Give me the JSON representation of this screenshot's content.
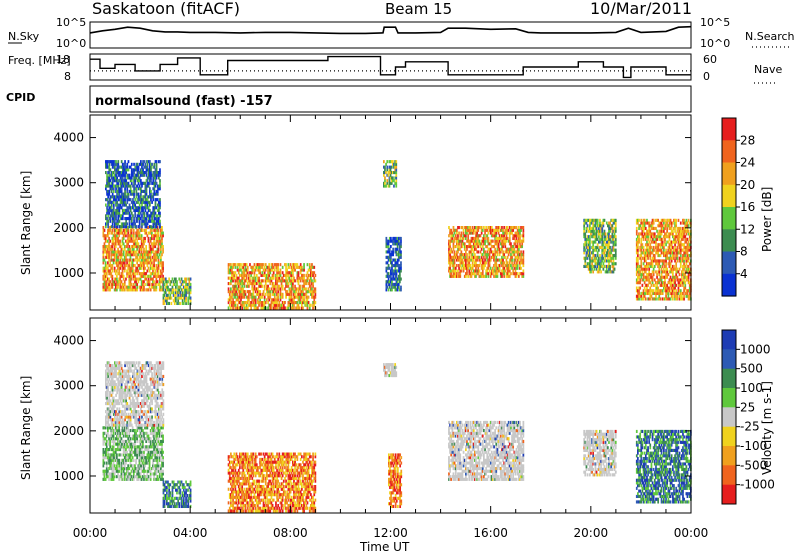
{
  "header": {
    "site": "Saskatoon (fitACF)",
    "beam": "Beam 15",
    "date": "10/Mar/2011",
    "mode": "normalsound (fast) -157"
  },
  "colors": {
    "power": [
      "#0a32d2",
      "#2d5ab4",
      "#3c8c50",
      "#5fc83c",
      "#f0d21e",
      "#f0a01e",
      "#f0641e",
      "#e61e1e"
    ],
    "velocity": [
      "#e61e1e",
      "#f0641e",
      "#f0a01e",
      "#f0d21e",
      "#c8c8c8",
      "#5fc83c",
      "#3c8c50",
      "#2d5ab4",
      "#1e3cb4"
    ]
  },
  "chart_data": [
    {
      "type": "line",
      "name": "top-panel-noise",
      "title": "",
      "xlim": [
        "00:00",
        "24:00"
      ],
      "ylabel_left": "N.Sky",
      "ylabel_right": "N.Search",
      "left_ticks": [
        "10^5",
        "10^0"
      ],
      "right_ticks": [
        "10^5",
        "10^0"
      ],
      "right_legend": "N.Search",
      "series": [
        {
          "name": "N.Sky",
          "x": [
            0,
            0.5,
            1,
            1.5,
            2,
            2.5,
            3,
            3.5,
            4,
            5,
            6,
            7,
            8,
            9,
            10,
            11,
            11.7,
            11.75,
            12.2,
            12.3,
            13,
            14,
            14.3,
            15,
            16,
            17,
            17.5,
            18,
            19,
            20,
            21,
            21.5,
            22,
            23,
            23.5,
            24
          ],
          "y": [
            2.9,
            3.3,
            3.6,
            4.0,
            3.8,
            3.3,
            3.1,
            3.1,
            3.0,
            3.0,
            2.9,
            3.0,
            3.0,
            2.9,
            2.8,
            2.8,
            2.9,
            4.0,
            4.0,
            2.9,
            2.9,
            3.0,
            3.8,
            3.8,
            3.6,
            3.7,
            3.0,
            2.9,
            2.9,
            2.9,
            3.0,
            3.8,
            3.0,
            3.2,
            4.0,
            4.1
          ]
        }
      ]
    },
    {
      "type": "line",
      "name": "frequency-panel",
      "ylabel_left": "Freq. [MHz]",
      "ylabel_right": "Nave",
      "left_ticks": [
        "18",
        "8"
      ],
      "right_ticks": [
        "60",
        "0"
      ],
      "right_legend": "Nave",
      "cpid_label": "CPID",
      "series": [
        {
          "name": "Freq",
          "x": [
            0,
            0.4,
            0.4,
            1.0,
            1.0,
            1.8,
            1.8,
            2.8,
            2.8,
            3.5,
            3.5,
            4.4,
            4.4,
            5.5,
            5.5,
            9.5,
            9.5,
            11.6,
            11.6,
            12.2,
            12.2,
            12.6,
            12.6,
            14.3,
            14.3,
            17.3,
            17.3,
            19.5,
            19.5,
            20.5,
            20.5,
            21.3,
            21.3,
            21.6,
            21.6,
            23.0,
            23.0,
            24.0
          ],
          "y": [
            16,
            16,
            12.5,
            12.5,
            14,
            14,
            11.5,
            11.5,
            14,
            14,
            16.5,
            16.5,
            10,
            10,
            15.5,
            15.5,
            17,
            17,
            10,
            10,
            13,
            13,
            15,
            15,
            10,
            10,
            13,
            13,
            15,
            15,
            13,
            13,
            9,
            9,
            13,
            13,
            10,
            10
          ]
        },
        {
          "name": "Nave",
          "x": [
            0,
            24
          ],
          "y": [
            11.5,
            11.5
          ]
        }
      ]
    },
    {
      "type": "heatmap",
      "name": "power-panel",
      "xlabel": "",
      "ylabel": "Slant Range [km]",
      "xlim": [
        "00:00",
        "24:00"
      ],
      "ylim": [
        180,
        4500
      ],
      "yticks": [
        1000,
        2000,
        3000,
        4000
      ],
      "colorbar_label": "Power [dB]",
      "colorbar_ticks": [
        4,
        8,
        12,
        16,
        20,
        24,
        28
      ],
      "regions": [
        {
          "t": [
            0.5,
            2.9
          ],
          "r": [
            600,
            2000
          ],
          "level": "high"
        },
        {
          "t": [
            0.6,
            2.8
          ],
          "r": [
            2000,
            3500
          ],
          "level": "low"
        },
        {
          "t": [
            2.9,
            4.0
          ],
          "r": [
            300,
            900
          ],
          "level": "mid"
        },
        {
          "t": [
            5.5,
            9.0
          ],
          "r": [
            200,
            1200
          ],
          "level": "high"
        },
        {
          "t": [
            11.7,
            12.2
          ],
          "r": [
            2900,
            3500
          ],
          "level": "mid"
        },
        {
          "t": [
            11.8,
            12.4
          ],
          "r": [
            600,
            1800
          ],
          "level": "low"
        },
        {
          "t": [
            14.3,
            17.3
          ],
          "r": [
            900,
            2000
          ],
          "level": "high"
        },
        {
          "t": [
            19.7,
            21.0
          ],
          "r": [
            1000,
            2200
          ],
          "level": "mid"
        },
        {
          "t": [
            21.8,
            24.0
          ],
          "r": [
            400,
            2200
          ],
          "level": "high"
        }
      ]
    },
    {
      "type": "heatmap",
      "name": "velocity-panel",
      "xlabel": "Time UT",
      "ylabel": "Slant Range [km]",
      "xlim": [
        "00:00",
        "24:00"
      ],
      "ylim": [
        180,
        4500
      ],
      "yticks": [
        1000,
        2000,
        3000,
        4000
      ],
      "xticks": [
        "00:00",
        "04:00",
        "08:00",
        "12:00",
        "16:00",
        "20:00",
        "00:00"
      ],
      "colorbar_label": "Velocity [m s-1]",
      "colorbar_ticks": [
        1000,
        500,
        100,
        25,
        -25,
        -100,
        -500,
        -1000
      ],
      "regions": [
        {
          "t": [
            0.5,
            2.9
          ],
          "r": [
            900,
            2100
          ],
          "level": "low"
        },
        {
          "t": [
            0.6,
            2.9
          ],
          "r": [
            2100,
            3500
          ],
          "level": "grey"
        },
        {
          "t": [
            2.9,
            4.0
          ],
          "r": [
            300,
            900
          ],
          "level": "pos"
        },
        {
          "t": [
            5.5,
            9.0
          ],
          "r": [
            200,
            1500
          ],
          "level": "neg"
        },
        {
          "t": [
            11.7,
            12.2
          ],
          "r": [
            3200,
            3500
          ],
          "level": "grey"
        },
        {
          "t": [
            11.9,
            12.4
          ],
          "r": [
            300,
            1500
          ],
          "level": "neg"
        },
        {
          "t": [
            14.3,
            17.3
          ],
          "r": [
            900,
            2200
          ],
          "level": "grey"
        },
        {
          "t": [
            19.7,
            21.0
          ],
          "r": [
            1000,
            2000
          ],
          "level": "grey"
        },
        {
          "t": [
            21.8,
            24.0
          ],
          "r": [
            400,
            2000
          ],
          "level": "pos"
        }
      ]
    }
  ]
}
